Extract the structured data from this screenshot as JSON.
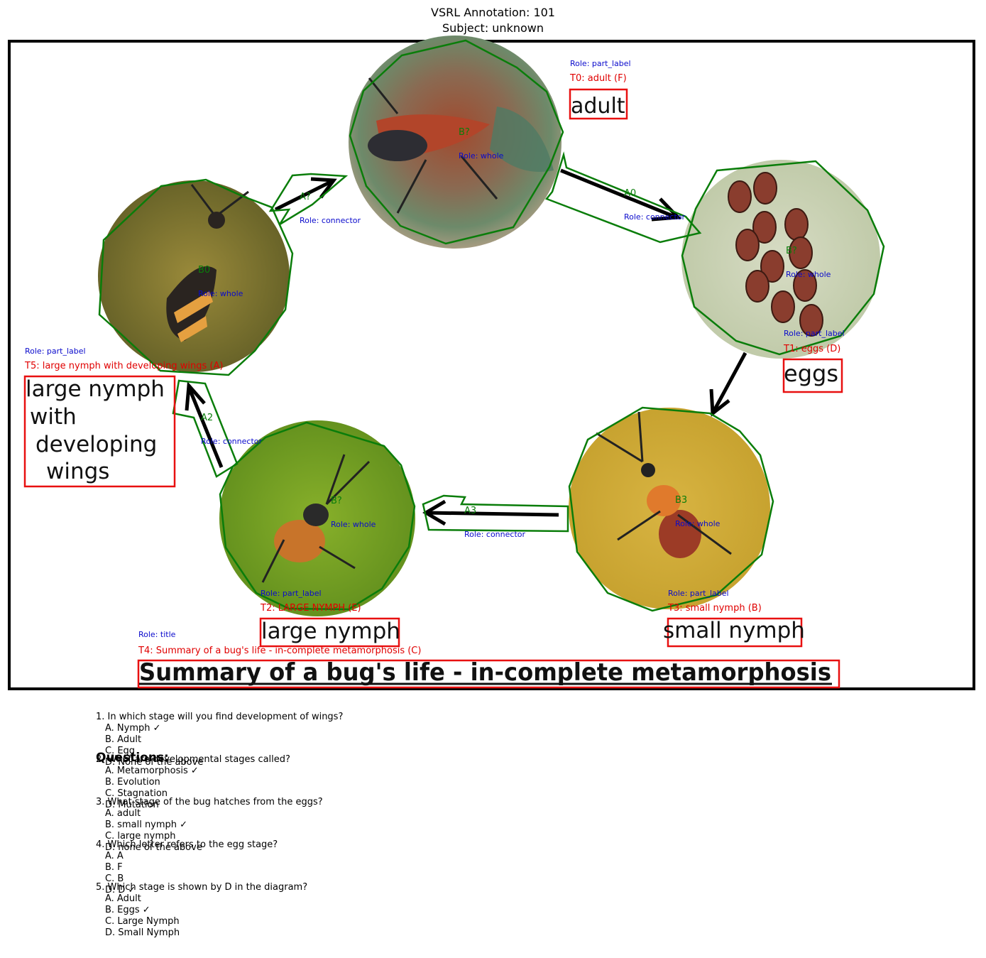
{
  "header": {
    "title": "VSRL Annotation: 101",
    "subject": "Subject: unknown"
  },
  "colors": {
    "polygon": "#0a7d0a",
    "box": "#e81010",
    "role": "#0a0acc",
    "label": "#e00000"
  },
  "diagram": {
    "whole": [
      {
        "id": "B?",
        "role": "Role: whole",
        "depicts": "adult bug"
      },
      {
        "id": "B?",
        "role": "Role: whole",
        "depicts": "eggs"
      },
      {
        "id": "B3",
        "role": "Role: whole",
        "depicts": "small nymph"
      },
      {
        "id": "B?",
        "role": "Role: whole",
        "depicts": "large nymph"
      },
      {
        "id": "B0",
        "role": "Role: whole",
        "depicts": "large nymph with developing wings"
      }
    ],
    "connectors": [
      {
        "id": "A0",
        "role": "Role: connector"
      },
      {
        "id": "A3",
        "role": "Role: connector"
      },
      {
        "id": "A2",
        "role": "Role: connector"
      },
      {
        "id": "A?",
        "role": "Role: connector"
      }
    ],
    "labels": [
      {
        "role": "Role: part_label",
        "caption": "T0: adult (F)",
        "text": "adult"
      },
      {
        "role": "Role: part_label",
        "caption": "T1: eggs (D)",
        "text": "eggs"
      },
      {
        "role": "Role: part_label",
        "caption": "T3: small nymph (B)",
        "text": "small nymph"
      },
      {
        "role": "Role: part_label",
        "caption": "T2: LARGE NYMPH (E)",
        "text": "large nymph"
      },
      {
        "role": "Role: part_label",
        "caption": "T5: large nymph with developing wings (A)",
        "text": [
          "large nymph",
          "with",
          "developing",
          "wings"
        ]
      },
      {
        "role": "Role: title",
        "caption": "T4: Summary of a bug's life - in-complete metamorphosis (C)",
        "text": "Summary of a bug's life - in-complete metamorphosis"
      }
    ]
  },
  "questions": {
    "heading": "Questions:",
    "items": [
      {
        "q": "1. In which stage will you find development of wings?",
        "options": [
          "A. Nymph ✓",
          "B. Adult",
          "C. Egg",
          "D. None of the above"
        ]
      },
      {
        "q": "2. What are developmental stages called?",
        "options": [
          "A. Metamorphosis ✓",
          "B. Evolution",
          "C. Stagnation",
          "D. Mutation"
        ]
      },
      {
        "q": "3. What stage of the bug hatches from the eggs?",
        "options": [
          "A. adult",
          "B. small nymph ✓",
          "C. large nymph",
          "D. none of the above"
        ]
      },
      {
        "q": "4. Which letter refers to the egg stage?",
        "options": [
          "A. A",
          "B. F",
          "C. B",
          "D. D ✓"
        ]
      },
      {
        "q": "5. Which stage is shown by D in the diagram?",
        "options": [
          "A. Adult",
          "B. Eggs ✓",
          "C. Large Nymph",
          "D. Small Nymph"
        ]
      }
    ]
  }
}
